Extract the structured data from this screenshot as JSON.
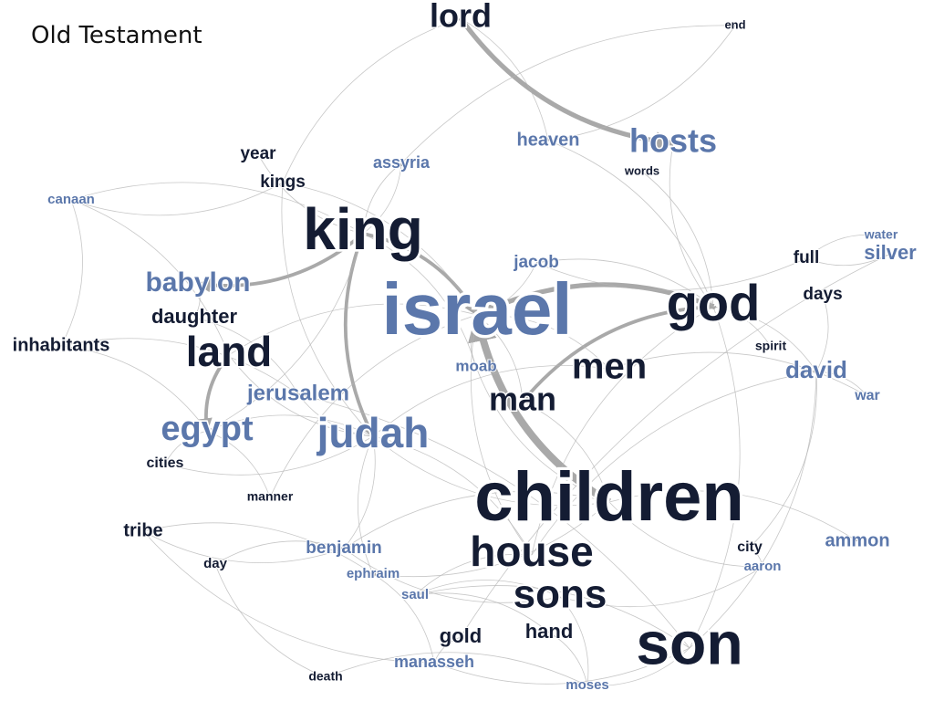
{
  "title": "Old Testament",
  "colors": {
    "dark": "#141c33",
    "blue": "#5b77ab",
    "edge": "#b4b4b4",
    "strong_edge": "#9a9a9a"
  },
  "nodes": [
    {
      "id": "lord",
      "label": "lord",
      "tone": "dark",
      "weight": 36
    },
    {
      "id": "end",
      "label": "end",
      "tone": "dark",
      "weight": 13
    },
    {
      "id": "heaven",
      "label": "heaven",
      "tone": "blue",
      "weight": 20
    },
    {
      "id": "hosts",
      "label": "hosts",
      "tone": "blue",
      "weight": 36
    },
    {
      "id": "year",
      "label": "year",
      "tone": "dark",
      "weight": 19
    },
    {
      "id": "kings",
      "label": "kings",
      "tone": "dark",
      "weight": 19
    },
    {
      "id": "assyria",
      "label": "assyria",
      "tone": "blue",
      "weight": 18
    },
    {
      "id": "words",
      "label": "words",
      "tone": "dark",
      "weight": 13
    },
    {
      "id": "canaan",
      "label": "canaan",
      "tone": "blue",
      "weight": 15
    },
    {
      "id": "king",
      "label": "king",
      "tone": "dark",
      "weight": 64
    },
    {
      "id": "water",
      "label": "water",
      "tone": "blue",
      "weight": 14
    },
    {
      "id": "silver",
      "label": "silver",
      "tone": "blue",
      "weight": 22
    },
    {
      "id": "full",
      "label": "full",
      "tone": "dark",
      "weight": 19
    },
    {
      "id": "jacob",
      "label": "jacob",
      "tone": "blue",
      "weight": 19
    },
    {
      "id": "babylon",
      "label": "babylon",
      "tone": "blue",
      "weight": 30
    },
    {
      "id": "israel",
      "label": "israel",
      "tone": "blue",
      "weight": 80
    },
    {
      "id": "god",
      "label": "god",
      "tone": "dark",
      "weight": 56
    },
    {
      "id": "days",
      "label": "days",
      "tone": "dark",
      "weight": 19
    },
    {
      "id": "daughter",
      "label": "daughter",
      "tone": "dark",
      "weight": 22
    },
    {
      "id": "inhabitants",
      "label": "inhabitants",
      "tone": "dark",
      "weight": 20
    },
    {
      "id": "land",
      "label": "land",
      "tone": "dark",
      "weight": 46
    },
    {
      "id": "spirit",
      "label": "spirit",
      "tone": "dark",
      "weight": 14
    },
    {
      "id": "moab",
      "label": "moab",
      "tone": "blue",
      "weight": 17
    },
    {
      "id": "men",
      "label": "men",
      "tone": "dark",
      "weight": 40
    },
    {
      "id": "david",
      "label": "david",
      "tone": "blue",
      "weight": 26
    },
    {
      "id": "jerusalem",
      "label": "jerusalem",
      "tone": "blue",
      "weight": 24
    },
    {
      "id": "man",
      "label": "man",
      "tone": "dark",
      "weight": 36
    },
    {
      "id": "war",
      "label": "war",
      "tone": "blue",
      "weight": 16
    },
    {
      "id": "egypt",
      "label": "egypt",
      "tone": "blue",
      "weight": 38
    },
    {
      "id": "judah",
      "label": "judah",
      "tone": "blue",
      "weight": 46
    },
    {
      "id": "cities",
      "label": "cities",
      "tone": "dark",
      "weight": 16
    },
    {
      "id": "children",
      "label": "children",
      "tone": "dark",
      "weight": 76
    },
    {
      "id": "manner",
      "label": "manner",
      "tone": "dark",
      "weight": 14
    },
    {
      "id": "tribe",
      "label": "tribe",
      "tone": "dark",
      "weight": 20
    },
    {
      "id": "benjamin",
      "label": "benjamin",
      "tone": "blue",
      "weight": 19
    },
    {
      "id": "house",
      "label": "house",
      "tone": "dark",
      "weight": 46
    },
    {
      "id": "ammon",
      "label": "ammon",
      "tone": "blue",
      "weight": 20
    },
    {
      "id": "city",
      "label": "city",
      "tone": "dark",
      "weight": 16
    },
    {
      "id": "day",
      "label": "day",
      "tone": "dark",
      "weight": 15
    },
    {
      "id": "ephraim",
      "label": "ephraim",
      "tone": "blue",
      "weight": 15
    },
    {
      "id": "aaron",
      "label": "aaron",
      "tone": "blue",
      "weight": 15
    },
    {
      "id": "saul",
      "label": "saul",
      "tone": "blue",
      "weight": 15
    },
    {
      "id": "sons",
      "label": "sons",
      "tone": "dark",
      "weight": 44
    },
    {
      "id": "hand",
      "label": "hand",
      "tone": "dark",
      "weight": 22
    },
    {
      "id": "gold",
      "label": "gold",
      "tone": "dark",
      "weight": 22
    },
    {
      "id": "son",
      "label": "son",
      "tone": "dark",
      "weight": 66
    },
    {
      "id": "manasseh",
      "label": "manasseh",
      "tone": "blue",
      "weight": 18
    },
    {
      "id": "death",
      "label": "death",
      "tone": "dark",
      "weight": 14
    },
    {
      "id": "moses",
      "label": "moses",
      "tone": "blue",
      "weight": 15
    }
  ],
  "edges": [
    {
      "source": "lord",
      "target": "hosts",
      "strength": 3
    },
    {
      "source": "children",
      "target": "israel",
      "strength": 5
    },
    {
      "source": "god",
      "target": "israel",
      "strength": 3
    },
    {
      "source": "king",
      "target": "israel",
      "strength": 2
    },
    {
      "source": "king",
      "target": "judah",
      "strength": 2
    },
    {
      "source": "king",
      "target": "babylon",
      "strength": 2
    },
    {
      "source": "land",
      "target": "egypt",
      "strength": 2
    },
    {
      "source": "man",
      "target": "god",
      "strength": 2
    },
    {
      "source": "men",
      "target": "judah",
      "strength": 1
    },
    {
      "source": "children",
      "target": "ammon",
      "strength": 1
    },
    {
      "source": "son",
      "target": "god",
      "strength": 1
    },
    {
      "source": "lord",
      "target": "heaven",
      "strength": 1
    },
    {
      "source": "lord",
      "target": "kings",
      "strength": 1
    },
    {
      "source": "end",
      "target": "heaven",
      "strength": 1
    },
    {
      "source": "end",
      "target": "assyria",
      "strength": 1
    },
    {
      "source": "heaven",
      "target": "god",
      "strength": 1
    },
    {
      "source": "hosts",
      "target": "god",
      "strength": 1
    },
    {
      "source": "words",
      "target": "god",
      "strength": 1
    },
    {
      "source": "year",
      "target": "king",
      "strength": 1
    },
    {
      "source": "kings",
      "target": "israel",
      "strength": 1
    },
    {
      "source": "kings",
      "target": "judah",
      "strength": 1
    },
    {
      "source": "kings",
      "target": "canaan",
      "strength": 1
    },
    {
      "source": "assyria",
      "target": "king",
      "strength": 1
    },
    {
      "source": "king",
      "target": "egypt",
      "strength": 1
    },
    {
      "source": "king",
      "target": "assyria",
      "strength": 1
    },
    {
      "source": "king",
      "target": "moab",
      "strength": 1
    },
    {
      "source": "king",
      "target": "canaan",
      "strength": 1
    },
    {
      "source": "inhabitants",
      "target": "egypt",
      "strength": 1
    },
    {
      "source": "inhabitants",
      "target": "canaan",
      "strength": 1
    },
    {
      "source": "inhabitants",
      "target": "jerusalem",
      "strength": 1
    },
    {
      "source": "daughter",
      "target": "babylon",
      "strength": 1
    },
    {
      "source": "daughter",
      "target": "jerusalem",
      "strength": 1
    },
    {
      "source": "land",
      "target": "canaan",
      "strength": 1
    },
    {
      "source": "land",
      "target": "israel",
      "strength": 1
    },
    {
      "source": "land",
      "target": "judah",
      "strength": 1
    },
    {
      "source": "jacob",
      "target": "israel",
      "strength": 1
    },
    {
      "source": "god",
      "target": "jacob",
      "strength": 1
    },
    {
      "source": "god",
      "target": "david",
      "strength": 1
    },
    {
      "source": "full",
      "target": "silver",
      "strength": 1
    },
    {
      "source": "full",
      "target": "jacob",
      "strength": 1
    },
    {
      "source": "water",
      "target": "full",
      "strength": 1
    },
    {
      "source": "days",
      "target": "david",
      "strength": 1
    },
    {
      "source": "spirit",
      "target": "god",
      "strength": 1
    },
    {
      "source": "david",
      "target": "war",
      "strength": 1
    },
    {
      "source": "men",
      "target": "israel",
      "strength": 1
    },
    {
      "source": "men",
      "target": "war",
      "strength": 1
    },
    {
      "source": "man",
      "target": "israel",
      "strength": 1
    },
    {
      "source": "moab",
      "target": "israel",
      "strength": 1
    },
    {
      "source": "jerusalem",
      "target": "judah",
      "strength": 1
    },
    {
      "source": "egypt",
      "target": "judah",
      "strength": 1
    },
    {
      "source": "cities",
      "target": "judah",
      "strength": 1
    },
    {
      "source": "cities",
      "target": "egypt",
      "strength": 1
    },
    {
      "source": "manner",
      "target": "egypt",
      "strength": 1
    },
    {
      "source": "manner",
      "target": "israel",
      "strength": 1
    },
    {
      "source": "tribe",
      "target": "benjamin",
      "strength": 1
    },
    {
      "source": "tribe",
      "target": "ephraim",
      "strength": 1
    },
    {
      "source": "tribe",
      "target": "manasseh",
      "strength": 1
    },
    {
      "source": "children",
      "target": "judah",
      "strength": 1
    },
    {
      "source": "children",
      "target": "benjamin",
      "strength": 1
    },
    {
      "source": "children",
      "target": "ephraim",
      "strength": 1
    },
    {
      "source": "children",
      "target": "aaron",
      "strength": 1
    },
    {
      "source": "children",
      "target": "moab",
      "strength": 1
    },
    {
      "source": "children",
      "target": "man",
      "strength": 1
    },
    {
      "source": "house",
      "target": "israel",
      "strength": 1
    },
    {
      "source": "house",
      "target": "judah",
      "strength": 1
    },
    {
      "source": "house",
      "target": "david",
      "strength": 1
    },
    {
      "source": "house",
      "target": "saul",
      "strength": 1
    },
    {
      "source": "house",
      "target": "god",
      "strength": 1
    },
    {
      "source": "sons",
      "target": "aaron",
      "strength": 1
    },
    {
      "source": "sons",
      "target": "benjamin",
      "strength": 1
    },
    {
      "source": "sons",
      "target": "saul",
      "strength": 1
    },
    {
      "source": "sons",
      "target": "moses",
      "strength": 1
    },
    {
      "source": "son",
      "target": "saul",
      "strength": 1
    },
    {
      "source": "son",
      "target": "manasseh",
      "strength": 1
    },
    {
      "source": "son",
      "target": "jerusalem",
      "strength": 1
    },
    {
      "source": "son",
      "target": "moses",
      "strength": 1
    },
    {
      "source": "son",
      "target": "david",
      "strength": 1
    },
    {
      "source": "hand",
      "target": "moses",
      "strength": 1
    },
    {
      "source": "hand",
      "target": "saul",
      "strength": 1
    },
    {
      "source": "gold",
      "target": "silver",
      "strength": 1
    },
    {
      "source": "gold",
      "target": "manasseh",
      "strength": 1
    },
    {
      "source": "day",
      "target": "benjamin",
      "strength": 1
    },
    {
      "source": "day",
      "target": "death",
      "strength": 1
    },
    {
      "source": "death",
      "target": "moses",
      "strength": 1
    },
    {
      "source": "city",
      "target": "david",
      "strength": 1
    },
    {
      "source": "city",
      "target": "aaron",
      "strength": 1
    },
    {
      "source": "benjamin",
      "target": "judah",
      "strength": 1
    },
    {
      "source": "ephraim",
      "target": "judah",
      "strength": 1
    },
    {
      "source": "manasseh",
      "target": "ephraim",
      "strength": 1
    }
  ]
}
